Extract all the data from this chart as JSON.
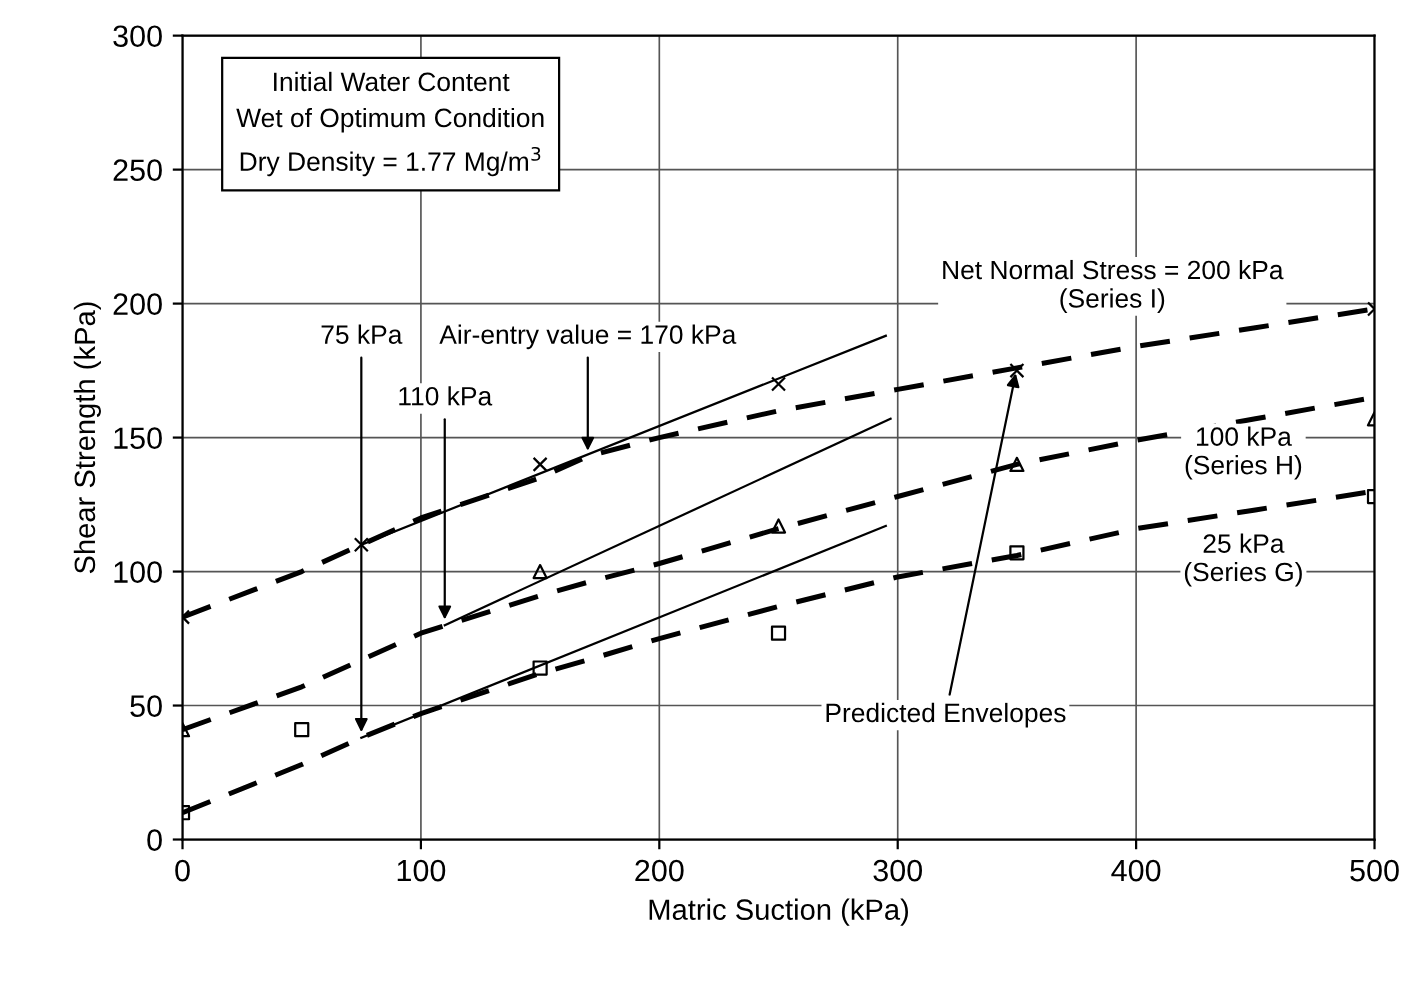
{
  "chart_data": {
    "type": "line",
    "xlabel": "Matric Suction (kPa)",
    "ylabel": "Shear Strength (kPa)",
    "xlim": [
      0,
      500
    ],
    "xticks": [
      0,
      100,
      200,
      300,
      400,
      500
    ],
    "ylim": [
      0,
      300
    ],
    "yticks": [
      0,
      50,
      100,
      150,
      200,
      250,
      300
    ],
    "grid": true,
    "series": [
      {
        "name": "Net Normal Stress = 200 kPa\n(Series I)",
        "line_style": "dashed",
        "color": "#000000",
        "x": [
          0,
          50,
          75,
          100,
          150,
          170,
          200,
          250,
          300,
          350,
          400,
          450,
          500
        ],
        "values": [
          83,
          100,
          110,
          120,
          135,
          143,
          150,
          160,
          168,
          176,
          184,
          191,
          198
        ]
      },
      {
        "name": "100 kPa\n(Series H)",
        "line_style": "dashed",
        "color": "#000000",
        "x": [
          0,
          50,
          75,
          100,
          150,
          170,
          200,
          250,
          300,
          350,
          400,
          450,
          500
        ],
        "values": [
          41,
          57,
          67,
          77,
          91,
          96,
          103,
          116,
          128,
          140,
          149,
          157,
          165
        ]
      },
      {
        "name": "25 kPa\n(Series G)",
        "line_style": "dashed",
        "color": "#000000",
        "x": [
          0,
          50,
          75,
          100,
          150,
          170,
          200,
          250,
          300,
          350,
          400,
          450,
          500
        ],
        "values": [
          10,
          28,
          38,
          47,
          62,
          67,
          75,
          87,
          98,
          106,
          116,
          123,
          130
        ]
      },
      {
        "line_style": "solid",
        "color": "#000000",
        "x": [
          75,
          295
        ],
        "values": [
          110,
          188
        ]
      },
      {
        "line_style": "solid",
        "color": "#000000",
        "x": [
          110,
          297
        ],
        "values": [
          80,
          157
        ]
      },
      {
        "line_style": "solid",
        "color": "#000000",
        "x": [
          75,
          295
        ],
        "values": [
          38,
          117
        ]
      },
      {
        "type": "scatter",
        "marker": "cross",
        "color": "#000000",
        "x": [
          0,
          75,
          150,
          250,
          350,
          500
        ],
        "values": [
          83,
          110,
          140,
          170,
          175,
          198
        ]
      },
      {
        "type": "scatter",
        "marker": "triangle",
        "color": "#000000",
        "x": [
          0,
          150,
          250,
          350,
          500
        ],
        "values": [
          41,
          100,
          117,
          140,
          157
        ]
      },
      {
        "type": "scatter",
        "marker": "square",
        "color": "#000000",
        "x": [
          0,
          50,
          150,
          250,
          350,
          500
        ],
        "values": [
          10,
          41,
          64,
          77,
          107,
          128
        ]
      }
    ],
    "annotations": [
      "Initial Water Content\nWet of Optimum Condition\nDry Density = 1.77 Mg/m$^{3}$",
      {
        "text": "75 kPa",
        "x": 75,
        "y": 38
      },
      {
        "text": "110 kPa",
        "x": 110,
        "y": 80
      },
      {
        "text": "Air-entry value = 170 kPa",
        "x": 170,
        "y": 143
      },
      {
        "text": "Predicted Envelopes",
        "x": 350,
        "y": 176
      }
    ]
  }
}
